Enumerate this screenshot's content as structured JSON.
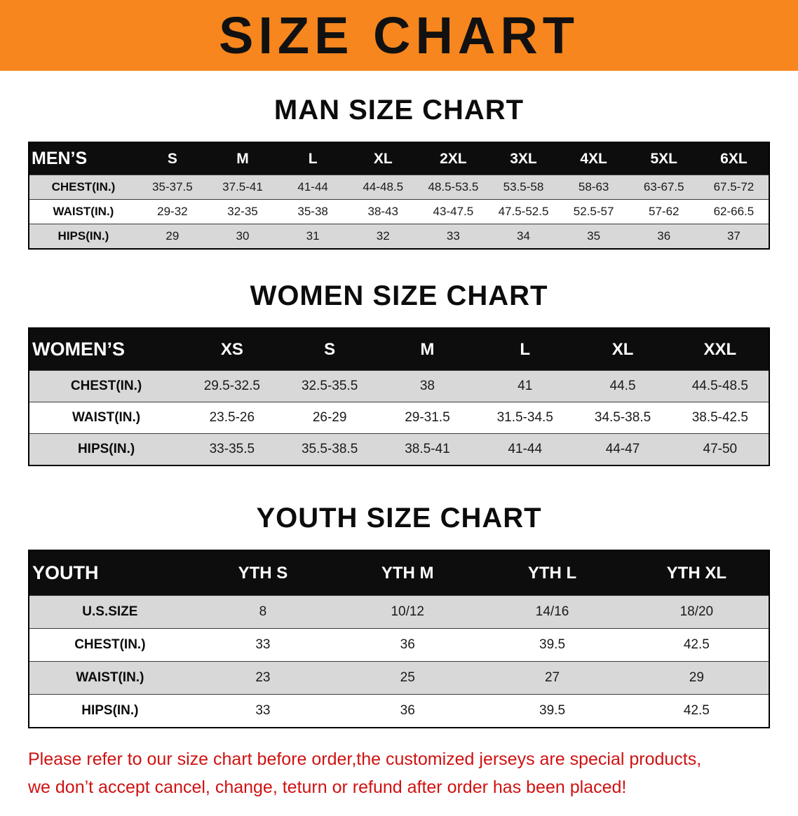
{
  "banner": {
    "title": "SIZE CHART"
  },
  "colors": {
    "banner_bg": "#f6861d",
    "table_header_bg": "#0d0d0d",
    "row_stripe": "#d8d8d8",
    "disclaimer_text": "#cf1212"
  },
  "sections": [
    {
      "id": "men",
      "heading": "MAN SIZE CHART",
      "table": {
        "label_header": "MEN’S",
        "columns": [
          "S",
          "M",
          "L",
          "XL",
          "2XL",
          "3XL",
          "4XL",
          "5XL",
          "6XL"
        ],
        "rows": [
          {
            "label": "CHEST(IN.)",
            "values": [
              "35-37.5",
              "37.5-41",
              "41-44",
              "44-48.5",
              "48.5-53.5",
              "53.5-58",
              "58-63",
              "63-67.5",
              "67.5-72"
            ]
          },
          {
            "label": "WAIST(IN.)",
            "values": [
              "29-32",
              "32-35",
              "35-38",
              "38-43",
              "43-47.5",
              "47.5-52.5",
              "52.5-57",
              "57-62",
              "62-66.5"
            ]
          },
          {
            "label": "HIPS(IN.)",
            "values": [
              "29",
              "30",
              "31",
              "32",
              "33",
              "34",
              "35",
              "36",
              "37"
            ]
          }
        ]
      }
    },
    {
      "id": "women",
      "heading": "WOMEN SIZE CHART",
      "table": {
        "label_header": "WOMEN’S",
        "columns": [
          "XS",
          "S",
          "M",
          "L",
          "XL",
          "XXL"
        ],
        "rows": [
          {
            "label": "CHEST(IN.)",
            "values": [
              "29.5-32.5",
              "32.5-35.5",
              "38",
              "41",
              "44.5",
              "44.5-48.5"
            ]
          },
          {
            "label": "WAIST(IN.)",
            "values": [
              "23.5-26",
              "26-29",
              "29-31.5",
              "31.5-34.5",
              "34.5-38.5",
              "38.5-42.5"
            ]
          },
          {
            "label": "HIPS(IN.)",
            "values": [
              "33-35.5",
              "35.5-38.5",
              "38.5-41",
              "41-44",
              "44-47",
              "47-50"
            ]
          }
        ]
      }
    },
    {
      "id": "youth",
      "heading": "YOUTH SIZE CHART",
      "table": {
        "label_header": "YOUTH",
        "columns": [
          "YTH S",
          "YTH M",
          "YTH L",
          "YTH XL"
        ],
        "rows": [
          {
            "label": "U.S.SIZE",
            "values": [
              "8",
              "10/12",
              "14/16",
              "18/20"
            ]
          },
          {
            "label": "CHEST(IN.)",
            "values": [
              "33",
              "36",
              "39.5",
              "42.5"
            ]
          },
          {
            "label": "WAIST(IN.)",
            "values": [
              "23",
              "25",
              "27",
              "29"
            ]
          },
          {
            "label": "HIPS(IN.)",
            "values": [
              "33",
              "36",
              "39.5",
              "42.5"
            ]
          }
        ]
      }
    }
  ],
  "disclaimer": {
    "line1": "Please refer to our size chart before order,the customized jerseys are special products,",
    "line2": "we don’t accept cancel, change, teturn or refund after order has been placed!"
  }
}
